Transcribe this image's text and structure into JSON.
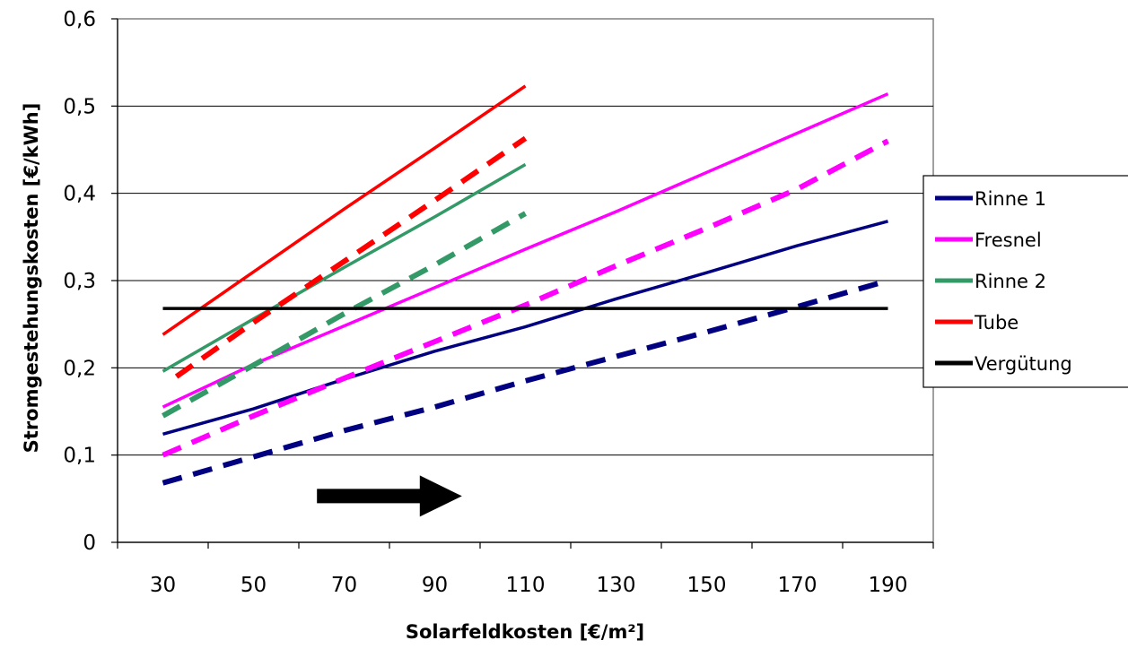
{
  "chart_data": {
    "type": "line",
    "xlabel": "Solarfeldkosten [€/m²]",
    "ylabel": "Stromgestehungskosten [€/kWh]",
    "xlim": [
      20,
      200
    ],
    "ylim": [
      0,
      0.6
    ],
    "x_ticks": [
      30,
      50,
      70,
      90,
      110,
      130,
      150,
      170,
      190
    ],
    "x_tick_labels": [
      "30",
      "50",
      "70",
      "90",
      "110",
      "130",
      "150",
      "170",
      "190"
    ],
    "y_ticks": [
      0,
      0.1,
      0.2,
      0.3,
      0.4,
      0.5,
      0.6
    ],
    "y_tick_labels": [
      "0",
      "0,1",
      "0,2",
      "0,3",
      "0,4",
      "0,5",
      "0,6"
    ],
    "grid": "horizontal",
    "legend_position": "right",
    "series": [
      {
        "name": "Rinne 1",
        "color": "#000080",
        "style": "solid",
        "x": [
          30,
          50,
          70,
          90,
          110,
          130,
          150,
          170,
          190
        ],
        "y": [
          0.124,
          0.153,
          0.187,
          0.219,
          0.247,
          0.279,
          0.309,
          0.34,
          0.368
        ]
      },
      {
        "name": "",
        "color": "#000080",
        "style": "dashed",
        "x": [
          30,
          50,
          70,
          90,
          110,
          130,
          150,
          170,
          190
        ],
        "y": [
          0.068,
          0.098,
          0.128,
          0.155,
          0.185,
          0.213,
          0.241,
          0.27,
          0.3
        ]
      },
      {
        "name": "Fresnel",
        "color": "#ff00ff",
        "style": "solid",
        "x": [
          30,
          50,
          70,
          90,
          110,
          130,
          150,
          170,
          190
        ],
        "y": [
          0.155,
          0.204,
          0.248,
          0.292,
          0.336,
          0.379,
          0.424,
          0.469,
          0.514
        ]
      },
      {
        "name": "",
        "color": "#ff00ff",
        "style": "dashed",
        "x": [
          30,
          50,
          70,
          90,
          110,
          130,
          150,
          170,
          190
        ],
        "y": [
          0.1,
          0.145,
          0.188,
          0.23,
          0.272,
          0.317,
          0.36,
          0.405,
          0.46
        ]
      },
      {
        "name": "Rinne 2",
        "color": "#339966",
        "style": "solid",
        "x": [
          30,
          50,
          70,
          90,
          110
        ],
        "y": [
          0.196,
          0.256,
          0.315,
          0.373,
          0.433
        ]
      },
      {
        "name": "",
        "color": "#339966",
        "style": "dashed",
        "x": [
          30,
          50,
          70,
          90,
          110
        ],
        "y": [
          0.145,
          0.203,
          0.262,
          0.318,
          0.377
        ]
      },
      {
        "name": "Tube",
        "color": "#ff0000",
        "style": "solid",
        "x": [
          30,
          50,
          70,
          90,
          110
        ],
        "y": [
          0.238,
          0.31,
          0.382,
          0.452,
          0.523
        ]
      },
      {
        "name": "",
        "color": "#ff0000",
        "style": "dashed",
        "x": [
          33,
          50,
          70,
          90,
          110
        ],
        "y": [
          0.19,
          0.252,
          0.322,
          0.392,
          0.463
        ]
      },
      {
        "name": "Vergütung",
        "color": "#000000",
        "style": "solid",
        "x": [
          30,
          190
        ],
        "y": [
          0.268,
          0.268
        ]
      }
    ],
    "annotations": [
      {
        "type": "arrow",
        "color": "#000000",
        "from": {
          "x": 64,
          "y": 0.053
        },
        "to": {
          "x": 96,
          "y": 0.053
        }
      }
    ]
  }
}
